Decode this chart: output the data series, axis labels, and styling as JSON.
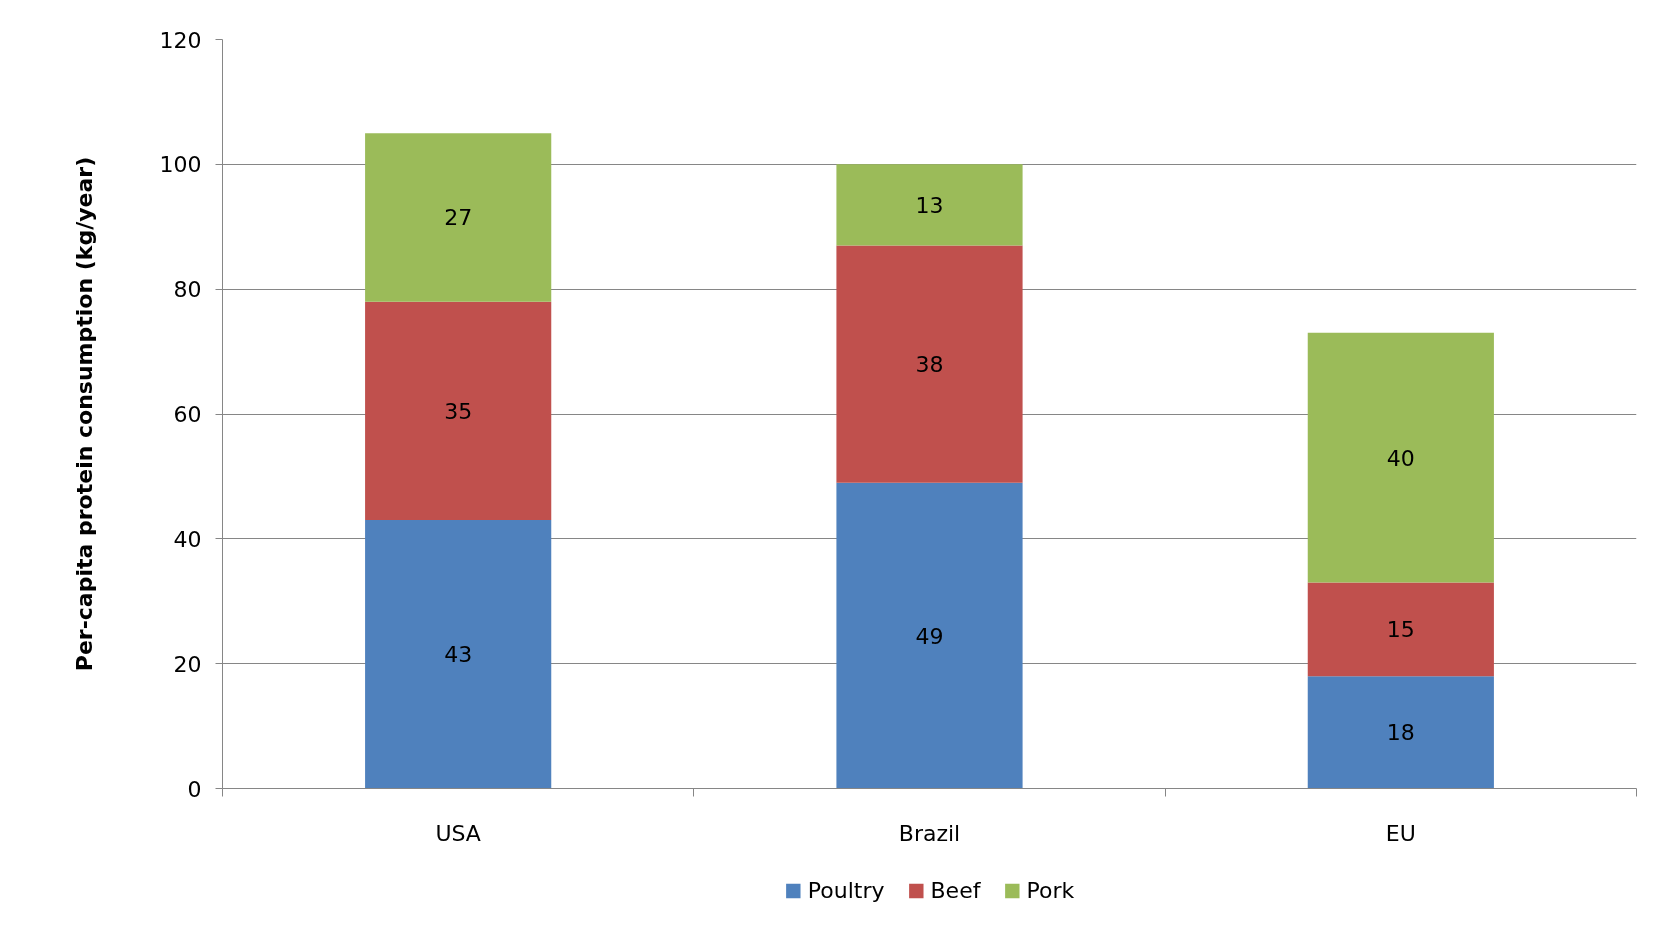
{
  "chart_data": {
    "type": "bar",
    "stacked": true,
    "ylabel": "Per-capita protein consumption (kg/year)",
    "categories": [
      "USA",
      "Brazil",
      "EU"
    ],
    "series": [
      {
        "name": "Poultry",
        "color": "#4f81bd",
        "values": [
          43,
          49,
          18
        ]
      },
      {
        "name": "Beef",
        "color": "#c0504d",
        "values": [
          35,
          38,
          15
        ]
      },
      {
        "name": "Pork",
        "color": "#9bbb59",
        "values": [
          27,
          13,
          40
        ]
      }
    ],
    "ylim": [
      0,
      120
    ],
    "yticks": [
      0,
      20,
      40,
      60,
      80,
      100,
      120
    ],
    "grid": "y",
    "legend": "bottom",
    "data_labels": true
  }
}
